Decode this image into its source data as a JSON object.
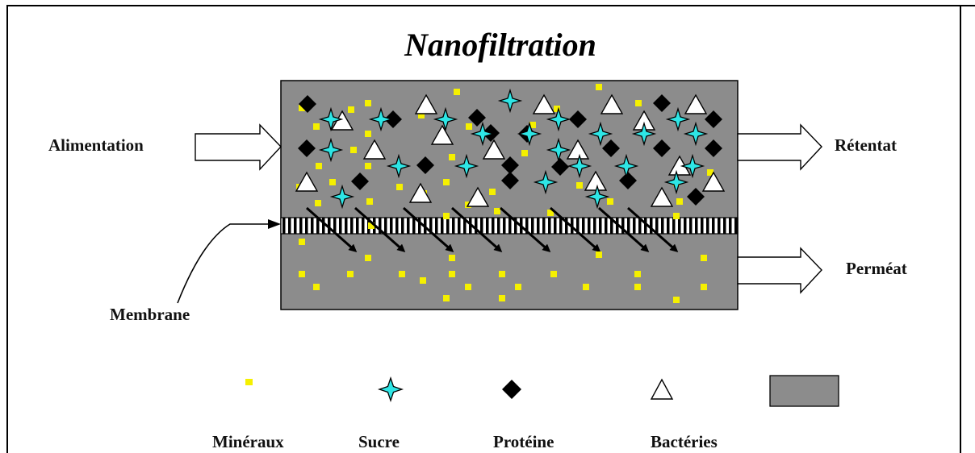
{
  "title": "Nanofiltration",
  "labels": {
    "feed": "Alimentation",
    "retentate": "Rétentat",
    "permeate": "Perméat",
    "membrane": "Membrane"
  },
  "legend": [
    {
      "kind": "mineral",
      "label": "Minéraux"
    },
    {
      "kind": "sugar",
      "label": "Sucre"
    },
    {
      "kind": "protein",
      "label": "Protéine"
    },
    {
      "kind": "bacteria",
      "label": "Bactéries"
    },
    {
      "kind": "medium",
      "label": ""
    }
  ],
  "colors": {
    "medium": "#8c8c8c",
    "mineral": "#f5f000",
    "sugar": "#2ee6e6",
    "protein": "#000000",
    "bacteria": "#ffffff"
  }
}
